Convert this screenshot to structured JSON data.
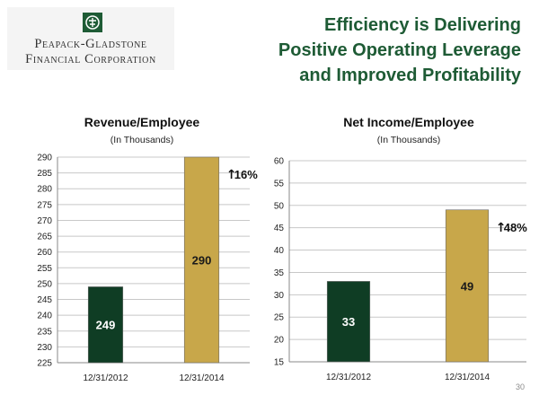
{
  "header": {
    "logo": {
      "line1": "Peapack-Gladstone",
      "line2": "Financial Corporation"
    },
    "title_lines": [
      "Efficiency is Delivering",
      "Positive Operating Leverage",
      "and Improved Profitability"
    ]
  },
  "colors": {
    "title": "#1e5b35",
    "bar_2012": "#0f3d24",
    "bar_2014": "#c8a74a",
    "grid": "#c8c8c8"
  },
  "chart_data": [
    {
      "type": "bar",
      "title": "Revenue/Employee",
      "subtitle": "(In Thousands)",
      "categories": [
        "12/31/2012",
        "12/31/2014"
      ],
      "values": [
        249,
        290
      ],
      "value_labels": [
        "249",
        "290"
      ],
      "ylim": [
        225,
        290
      ],
      "ystep": 5,
      "annotation": {
        "arrow": "↑",
        "text": "16%"
      }
    },
    {
      "type": "bar",
      "title": "Net Income/Employee",
      "subtitle": "(In Thousands)",
      "categories": [
        "12/31/2012",
        "12/31/2014"
      ],
      "values": [
        33,
        49
      ],
      "value_labels": [
        "33",
        "49"
      ],
      "ylim": [
        15,
        60
      ],
      "ystep": 5,
      "annotation": {
        "arrow": "↑",
        "text": "48%"
      }
    }
  ],
  "footer": {
    "page_number": "30"
  }
}
